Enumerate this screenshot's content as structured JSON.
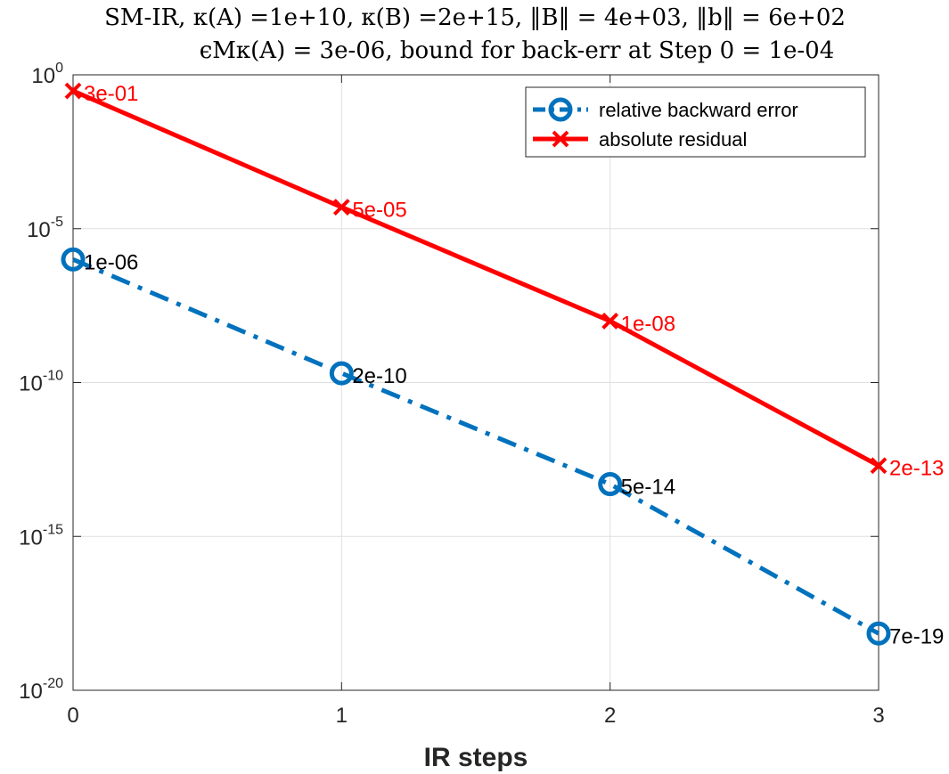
{
  "chart_data": {
    "type": "line",
    "title_lines": [
      "SM-IR, κ(A) =1e+10, κ(B) =2e+15, ‖B‖ = 4e+03, ‖b‖ = 6e+02",
      "ϵMκ(A) = 3e-06, bound for back-err at Step 0 = 1e-04"
    ],
    "xlabel": "IR steps",
    "ylabel": "",
    "y_scale": "log",
    "x": [
      0,
      1,
      2,
      3
    ],
    "xlim": [
      0,
      3
    ],
    "ylim": [
      1e-20,
      1
    ],
    "x_ticks": [
      "0",
      "1",
      "2",
      "3"
    ],
    "y_ticks": [
      {
        "base": "10",
        "exp": "0",
        "value": 1
      },
      {
        "base": "10",
        "exp": "-5",
        "value": 1e-05
      },
      {
        "base": "10",
        "exp": "-10",
        "value": 1e-10
      },
      {
        "base": "10",
        "exp": "-15",
        "value": 1e-15
      },
      {
        "base": "10",
        "exp": "-20",
        "value": 1e-20
      }
    ],
    "grid": true,
    "legend_position": "top-right",
    "series": [
      {
        "name": "relative backward error",
        "color": "#0072BD",
        "line_style": "dash-dot",
        "marker": "circle",
        "values": [
          1e-06,
          2e-10,
          5e-14,
          7e-19
        ],
        "labels": [
          "1e-06",
          "2e-10",
          "5e-14",
          "7e-19"
        ],
        "label_color": "#000000"
      },
      {
        "name": "absolute residual",
        "color": "#FF0000",
        "line_style": "solid",
        "marker": "x",
        "values": [
          0.3,
          5e-05,
          1e-08,
          2e-13
        ],
        "labels": [
          "3e-01",
          "5e-05",
          "1e-08",
          "2e-13"
        ],
        "label_color": "#FF0000"
      }
    ]
  }
}
